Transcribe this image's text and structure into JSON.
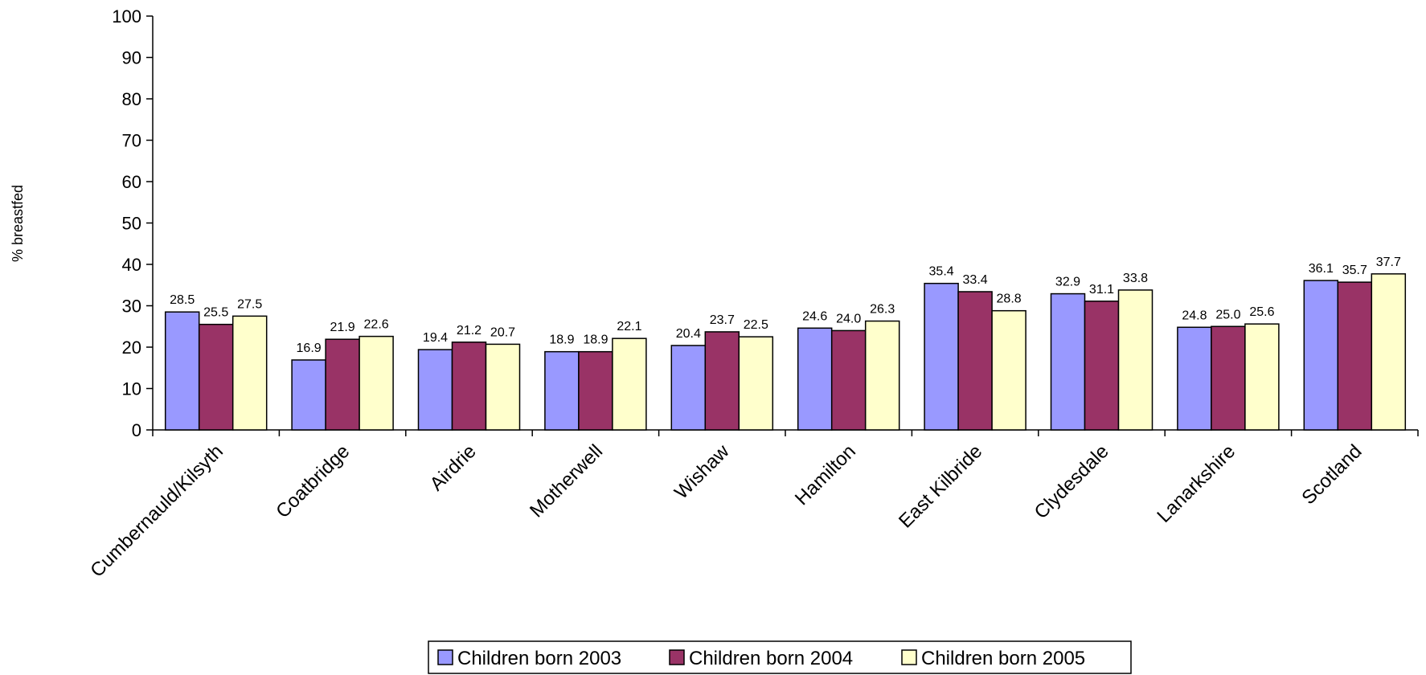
{
  "chart_data": {
    "type": "bar",
    "title": "",
    "xlabel": "",
    "ylabel": "% breastfed",
    "ylim": [
      0,
      100
    ],
    "yticks": [
      0,
      10,
      20,
      30,
      40,
      50,
      60,
      70,
      80,
      90,
      100
    ],
    "grid": false,
    "legend_position": "bottom",
    "categories": [
      "Cumbernauld/Kilsyth",
      "Coatbridge",
      "Airdrie",
      "Motherwell",
      "Wishaw",
      "Hamilton",
      "East Kilbride",
      "Clydesdale",
      "Lanarkshire",
      "Scotland"
    ],
    "series": [
      {
        "name": "Children born 2003",
        "color": "#9999ff",
        "values": [
          28.5,
          16.9,
          19.4,
          18.9,
          20.4,
          24.6,
          35.4,
          32.9,
          24.8,
          36.1
        ]
      },
      {
        "name": "Children born 2004",
        "color": "#993366",
        "values": [
          25.5,
          21.9,
          21.2,
          18.9,
          23.7,
          24.0,
          33.4,
          31.1,
          25.0,
          35.7
        ]
      },
      {
        "name": "Children born 2005",
        "color": "#ffffcc",
        "values": [
          27.5,
          22.6,
          20.7,
          22.1,
          22.5,
          26.3,
          28.8,
          33.8,
          25.6,
          37.7
        ]
      }
    ]
  }
}
